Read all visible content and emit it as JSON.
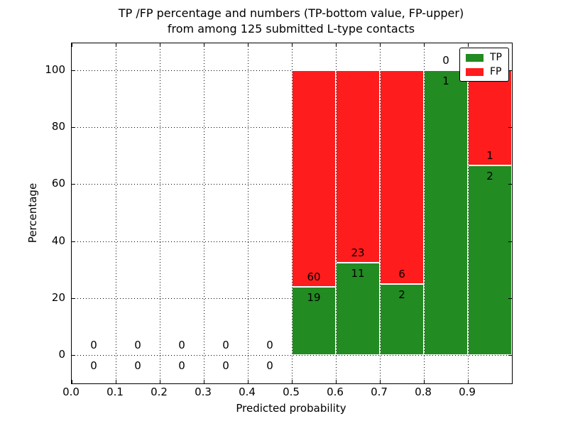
{
  "title": {
    "line1": "TP /FP percentage and numbers (TP-bottom value, FP-upper)",
    "line2": "from among 125 submitted L-type contacts"
  },
  "axes": {
    "xlabel": "Predicted probability",
    "ylabel": "Percentage",
    "x_ticks": [
      "0.0",
      "0.1",
      "0.2",
      "0.3",
      "0.4",
      "0.5",
      "0.6",
      "0.7",
      "0.8",
      "0.9"
    ],
    "y_ticks": [
      "0",
      "20",
      "40",
      "60",
      "80",
      "100"
    ],
    "xlim": [
      0.0,
      1.0
    ],
    "ylim": [
      -10,
      110
    ]
  },
  "legend": {
    "items": [
      {
        "label": "TP",
        "color": "#228b22"
      },
      {
        "label": "FP",
        "color": "#ff1c1c"
      }
    ]
  },
  "chart_data": {
    "type": "bar",
    "stacked": true,
    "title": "TP /FP percentage and numbers (TP-bottom value, FP-upper) from among 125 submitted L-type contacts",
    "xlabel": "Predicted probability",
    "ylabel": "Percentage",
    "xlim": [
      0.0,
      1.0
    ],
    "ylim": [
      -10,
      110
    ],
    "grid": true,
    "legend_position": "upper right",
    "bin_width": 0.1,
    "total_contacts": 125,
    "colors": {
      "tp": "#228b22",
      "fp": "#ff1c1c"
    },
    "bins": [
      {
        "x_start": 0.0,
        "x_end": 0.1,
        "tp_count": 0,
        "fp_count": 0,
        "tp_percent": 0,
        "fp_percent": 0
      },
      {
        "x_start": 0.1,
        "x_end": 0.2,
        "tp_count": 0,
        "fp_count": 0,
        "tp_percent": 0,
        "fp_percent": 0
      },
      {
        "x_start": 0.2,
        "x_end": 0.3,
        "tp_count": 0,
        "fp_count": 0,
        "tp_percent": 0,
        "fp_percent": 0
      },
      {
        "x_start": 0.3,
        "x_end": 0.4,
        "tp_count": 0,
        "fp_count": 0,
        "tp_percent": 0,
        "fp_percent": 0
      },
      {
        "x_start": 0.4,
        "x_end": 0.5,
        "tp_count": 0,
        "fp_count": 0,
        "tp_percent": 0,
        "fp_percent": 0
      },
      {
        "x_start": 0.5,
        "x_end": 0.6,
        "tp_count": 19,
        "fp_count": 60,
        "tp_percent": 24.05,
        "fp_percent": 75.95
      },
      {
        "x_start": 0.6,
        "x_end": 0.7,
        "tp_count": 11,
        "fp_count": 23,
        "tp_percent": 32.35,
        "fp_percent": 67.65
      },
      {
        "x_start": 0.7,
        "x_end": 0.8,
        "tp_count": 2,
        "fp_count": 6,
        "tp_percent": 25.0,
        "fp_percent": 75.0
      },
      {
        "x_start": 0.8,
        "x_end": 0.9,
        "tp_count": 1,
        "fp_count": 0,
        "tp_percent": 100.0,
        "fp_percent": 0.0
      },
      {
        "x_start": 0.9,
        "x_end": 1.0,
        "tp_count": 2,
        "fp_count": 1,
        "tp_percent": 66.67,
        "fp_percent": 33.33
      }
    ]
  }
}
